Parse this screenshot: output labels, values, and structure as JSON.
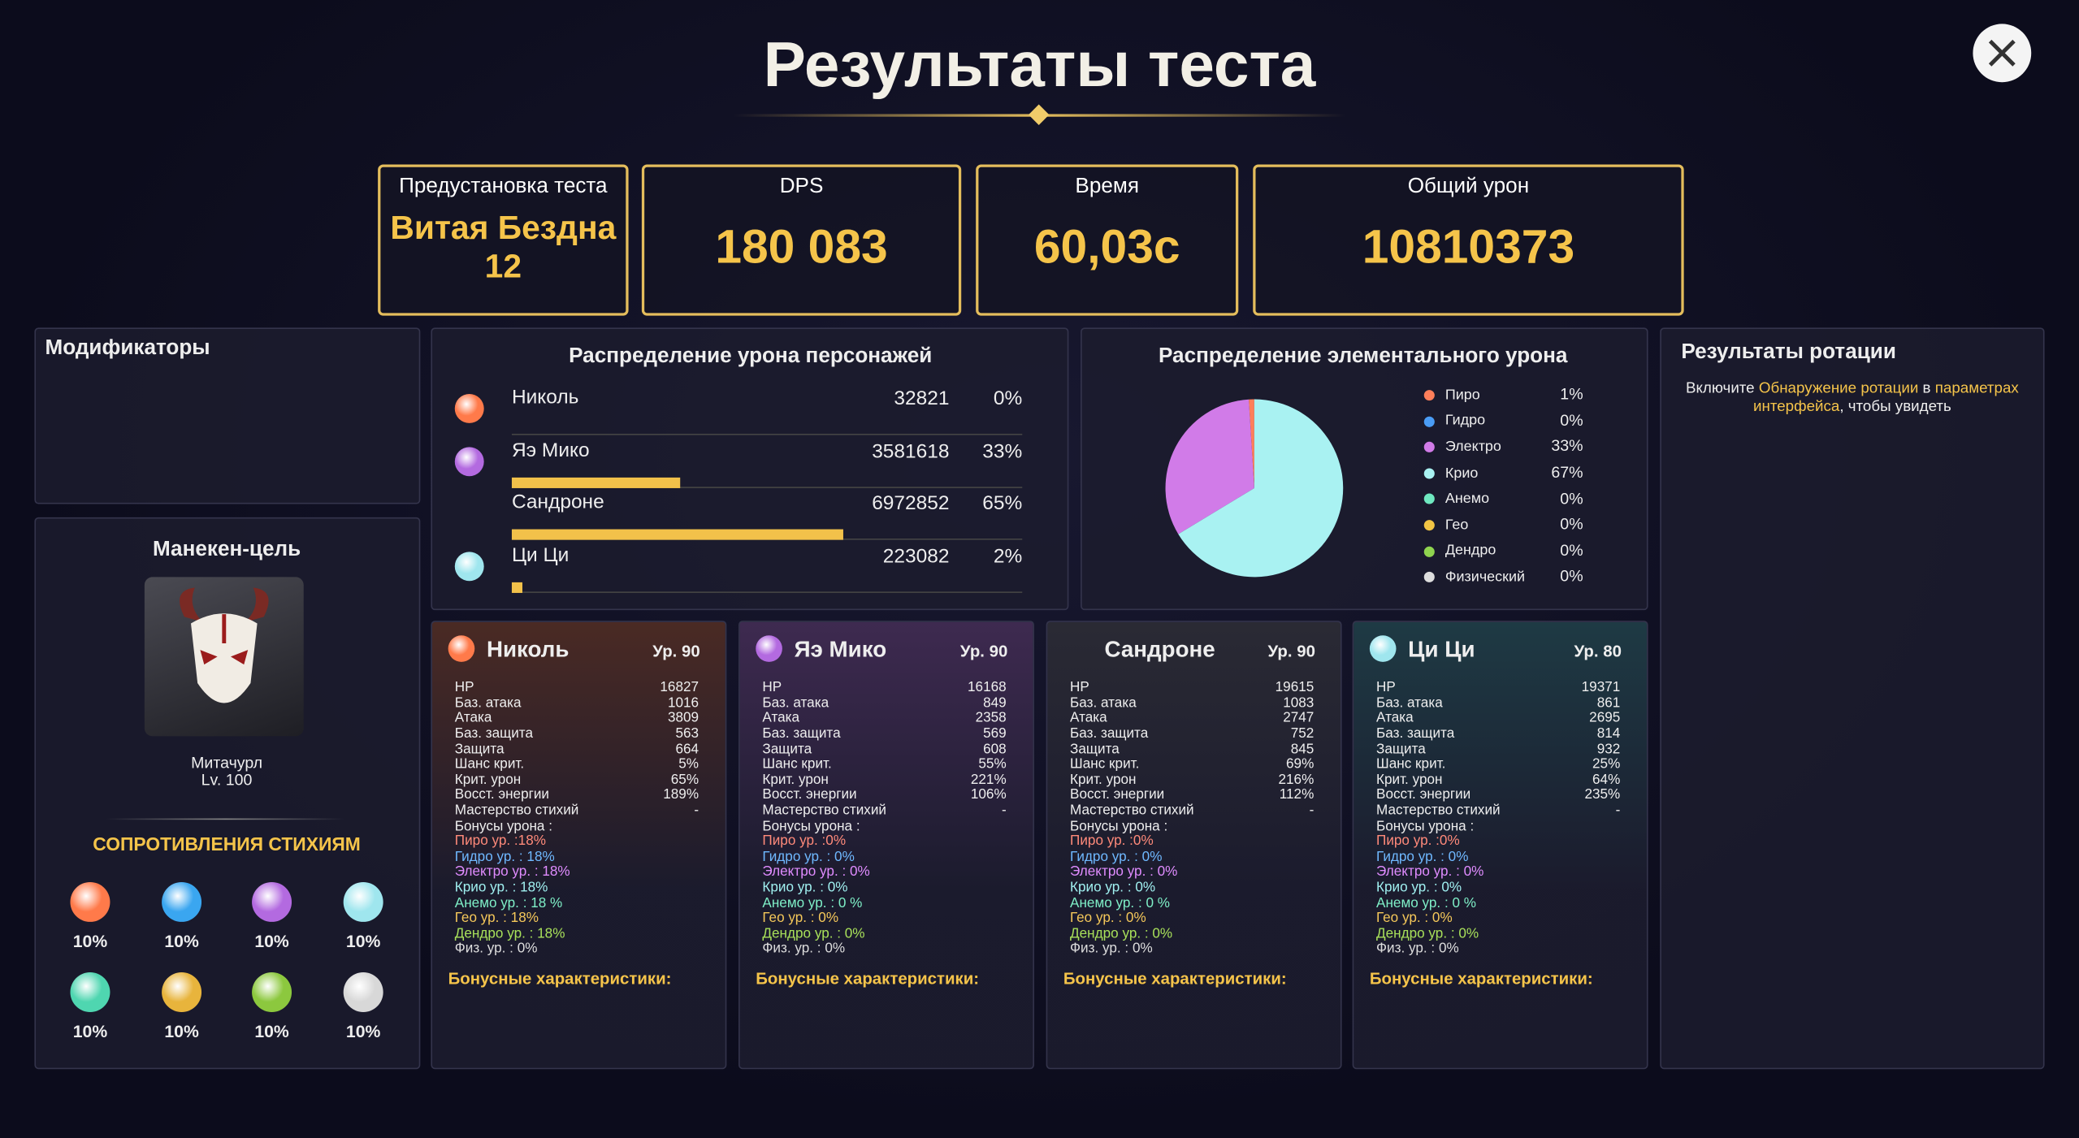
{
  "title": "Результаты теста",
  "summary": [
    {
      "label": "Предустановка теста",
      "value_lines": [
        "Витая Бездна",
        "12"
      ]
    },
    {
      "label": "DPS",
      "value": "180 083"
    },
    {
      "label": "Время",
      "value": "60,03с"
    },
    {
      "label": "Общий урон",
      "value": "10810373"
    }
  ],
  "modifiers": {
    "title": "Модификаторы"
  },
  "target": {
    "title": "Манекен-цель",
    "name": "Митачурл",
    "level": "Lv. 100",
    "res_title": "СОПРОТИВЛЕНИЯ СТИХИЯМ",
    "resistances": [
      "10%",
      "10%",
      "10%",
      "10%",
      "10%",
      "10%",
      "10%",
      "10%"
    ]
  },
  "damage": {
    "title": "Распределение урона персонажей",
    "rows": [
      {
        "name": "Николь",
        "damage": "32821",
        "share": 0,
        "share_label": "0%"
      },
      {
        "name": "Яэ Мико",
        "damage": "3581618",
        "share": 33,
        "share_label": "33%"
      },
      {
        "name": "Сандроне",
        "damage": "6972852",
        "share": 65,
        "share_label": "65%"
      },
      {
        "name": "Ци Ци",
        "damage": "223082",
        "share": 2,
        "share_label": "2%"
      }
    ]
  },
  "elements": {
    "title": "Распределение элементального урона",
    "type": "pie",
    "series": [
      {
        "name": "Пиро",
        "color": "#ff7f5a",
        "value": 1,
        "label": "1%"
      },
      {
        "name": "Гидро",
        "color": "#4a9cf5",
        "value": 0,
        "label": "0%"
      },
      {
        "name": "Электро",
        "color": "#d17be8",
        "value": 33,
        "label": "33%"
      },
      {
        "name": "Крио",
        "color": "#a9f2f2",
        "value": 67,
        "label": "67%"
      },
      {
        "name": "Анемо",
        "color": "#6fe8c0",
        "value": 0,
        "label": "0%"
      },
      {
        "name": "Гео",
        "color": "#f2c544",
        "value": 0,
        "label": "0%"
      },
      {
        "name": "Дендро",
        "color": "#8fd44f",
        "value": 0,
        "label": "0%"
      },
      {
        "name": "Физический",
        "color": "#dddddd",
        "value": 0,
        "label": "0%"
      }
    ]
  },
  "rotation": {
    "title": "Результаты ротации",
    "text": [
      "Включите ",
      "Обнаружение ротации",
      " в ",
      "параметрах интерфейса",
      ", чтобы увидеть"
    ]
  },
  "cards": [
    {
      "name": "Николь",
      "level": "Ур. 90",
      "stats": [
        {
          "label": "HP",
          "value": "16827"
        },
        {
          "label": "Баз. атака",
          "value": "1016"
        },
        {
          "label": "Атака",
          "value": "3809"
        },
        {
          "label": "Баз. защита",
          "value": "563"
        },
        {
          "label": "Защита",
          "value": "664"
        },
        {
          "label": "Шанс крит.",
          "value": "5%"
        },
        {
          "label": "Крит. урон",
          "value": "65%"
        },
        {
          "label": "Восст. энергии",
          "value": "189%"
        },
        {
          "label": "Мастерство стихий",
          "value": "-"
        }
      ],
      "bonus_title": "Бонусы урона :",
      "bonuses": [
        "Пиро ур. :18%",
        "Гидро ур. : 18%",
        "Электро ур. : 18%",
        "Крио ур. : 18%",
        "Анемо ур. : 18 %",
        "Гео ур. : 18%",
        "Дендро ур. : 18%",
        "Физ. ур. : 0%"
      ],
      "extra_title": "Бонусные характеристики:"
    },
    {
      "name": "Яэ Мико",
      "level": "Ур. 90",
      "stats": [
        {
          "label": "HP",
          "value": "16168"
        },
        {
          "label": "Баз. атака",
          "value": "849"
        },
        {
          "label": "Атака",
          "value": "2358"
        },
        {
          "label": "Баз. защита",
          "value": "569"
        },
        {
          "label": "Защита",
          "value": "608"
        },
        {
          "label": "Шанс крит.",
          "value": "55%"
        },
        {
          "label": "Крит. урон",
          "value": "221%"
        },
        {
          "label": "Восст. энергии",
          "value": "106%"
        },
        {
          "label": "Мастерство стихий",
          "value": "-"
        }
      ],
      "bonus_title": "Бонусы урона :",
      "bonuses": [
        "Пиро ур. :0%",
        "Гидро ур. : 0%",
        "Электро ур. : 0%",
        "Крио ур. : 0%",
        "Анемо ур. : 0 %",
        "Гео ур. : 0%",
        "Дендро ур. : 0%",
        "Физ. ур. : 0%"
      ],
      "extra_title": "Бонусные характеристики:"
    },
    {
      "name": "Сандроне",
      "level": "Ур. 90",
      "stats": [
        {
          "label": "HP",
          "value": "19615"
        },
        {
          "label": "Баз. атака",
          "value": "1083"
        },
        {
          "label": "Атака",
          "value": "2747"
        },
        {
          "label": "Баз. защита",
          "value": "752"
        },
        {
          "label": "Защита",
          "value": "845"
        },
        {
          "label": "Шанс крит.",
          "value": "69%"
        },
        {
          "label": "Крит. урон",
          "value": "216%"
        },
        {
          "label": "Восст. энергии",
          "value": "112%"
        },
        {
          "label": "Мастерство стихий",
          "value": "-"
        }
      ],
      "bonus_title": "Бонусы урона :",
      "bonuses": [
        "Пиро ур. :0%",
        "Гидро ур. : 0%",
        "Электро ур. : 0%",
        "Крио ур. : 0%",
        "Анемо ур. : 0 %",
        "Гео ур. : 0%",
        "Дендро ур. : 0%",
        "Физ. ур. : 0%"
      ],
      "extra_title": "Бонусные характеристики:"
    },
    {
      "name": "Ци Ци",
      "level": "Ур. 80",
      "stats": [
        {
          "label": "HP",
          "value": "19371"
        },
        {
          "label": "Баз. атака",
          "value": "861"
        },
        {
          "label": "Атака",
          "value": "2695"
        },
        {
          "label": "Баз. защита",
          "value": "814"
        },
        {
          "label": "Защита",
          "value": "932"
        },
        {
          "label": "Шанс крит.",
          "value": "25%"
        },
        {
          "label": "Крит. урон",
          "value": "64%"
        },
        {
          "label": "Восст. энергии",
          "value": "235%"
        },
        {
          "label": "Мастерство стихий",
          "value": "-"
        }
      ],
      "bonus_title": "Бонусы урона :",
      "bonuses": [
        "Пиро ур. :0%",
        "Гидро ур. : 0%",
        "Электро ур. : 0%",
        "Крио ур. : 0%",
        "Анемо ур. : 0 %",
        "Гео ур. : 0%",
        "Дендро ур. : 0%",
        "Физ. ур. : 0%"
      ],
      "extra_title": "Бонусные характеристики:"
    }
  ]
}
